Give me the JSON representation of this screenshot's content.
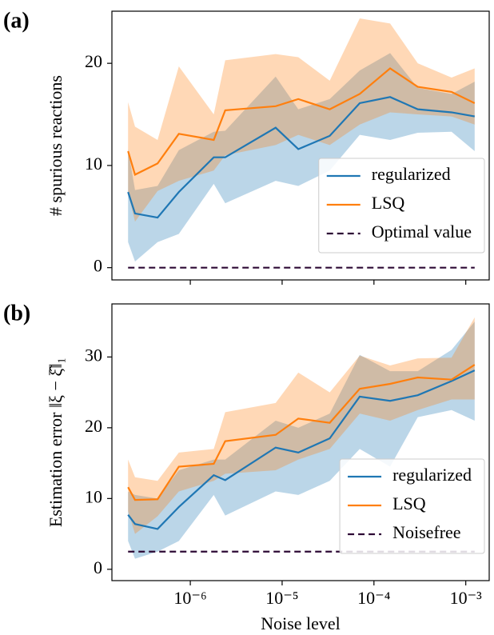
{
  "chart_data": [
    {
      "type": "line",
      "panel_label": "(a)",
      "ylabel": "# spurious reactions",
      "x": [
        2.1e-07,
        2.5e-07,
        4.4e-07,
        7.5e-07,
        1.8e-06,
        2.4e-06,
        8.5e-06,
        1.5e-05,
        3.3e-05,
        7e-05,
        0.00015,
        0.0003,
        0.0007,
        0.00125
      ],
      "xscale": "log",
      "sharex": true,
      "ylim": [
        -1.2,
        25.1
      ],
      "yticks": [
        0,
        10,
        20
      ],
      "legend": "lower right",
      "series": [
        {
          "name": "regularized",
          "color": "#1f77b4",
          "values": [
            7.4,
            5.3,
            4.9,
            7.4,
            10.8,
            10.8,
            13.7,
            11.6,
            12.9,
            16.1,
            16.7,
            15.5,
            15.2,
            14.8
          ],
          "band": {
            "lower": [
              2.5,
              0.6,
              2.5,
              3.3,
              8.2,
              6.3,
              8.5,
              8.0,
              9.5,
              13.0,
              12.5,
              13.2,
              13.3,
              11.4
            ],
            "upper": [
              11.6,
              7.6,
              8.0,
              11.5,
              13.3,
              13.4,
              18.7,
              15.5,
              16.5,
              19.3,
              21.0,
              17.6,
              17.0,
              18.2
            ]
          }
        },
        {
          "name": "LSQ",
          "color": "#ff7f0e",
          "values": [
            11.4,
            9.1,
            10.2,
            13.1,
            12.5,
            15.4,
            15.8,
            16.5,
            15.5,
            17.0,
            19.5,
            17.7,
            17.2,
            16.1
          ],
          "band": {
            "lower": [
              7.3,
              4.5,
              7.5,
              8.5,
              9.5,
              11.0,
              12.0,
              13.0,
              12.0,
              14.0,
              15.2,
              15.0,
              14.8,
              14.0
            ],
            "upper": [
              16.2,
              13.8,
              12.5,
              19.7,
              15.0,
              20.3,
              20.9,
              20.6,
              18.3,
              24.4,
              23.9,
              20.0,
              18.6,
              19.5
            ]
          }
        },
        {
          "name": "Optimal value",
          "color": "#2d0a35",
          "dashed": true,
          "values": [
            0,
            0,
            0,
            0,
            0,
            0,
            0,
            0,
            0,
            0,
            0,
            0,
            0,
            0
          ]
        }
      ]
    },
    {
      "type": "line",
      "panel_label": "(b)",
      "ylabel": "Estimation error ‖ξ − ξ̂‖₁",
      "xlabel": "Noise level",
      "x": [
        2.1e-07,
        2.5e-07,
        4.4e-07,
        7.5e-07,
        1.8e-06,
        2.4e-06,
        8.5e-06,
        1.5e-05,
        3.3e-05,
        7e-05,
        0.00015,
        0.0003,
        0.0007,
        0.00125
      ],
      "xscale": "log",
      "xlim": [
        1.4e-07,
        0.0018
      ],
      "xticks": [
        {
          "value": 1e-06,
          "label": "10⁻⁶"
        },
        {
          "value": 1e-05,
          "label": "10⁻⁵"
        },
        {
          "value": 0.0001,
          "label": "10⁻⁴"
        },
        {
          "value": 0.001,
          "label": "10⁻³"
        }
      ],
      "ylim": [
        -1.6,
        37.5
      ],
      "yticks": [
        0,
        10,
        20,
        30
      ],
      "legend": "lower right",
      "series": [
        {
          "name": "regularized",
          "color": "#1f77b4",
          "values": [
            7.7,
            6.4,
            5.7,
            8.8,
            13.3,
            12.6,
            17.2,
            16.5,
            18.5,
            24.4,
            23.8,
            24.6,
            26.6,
            28.1
          ],
          "band": {
            "lower": [
              4.0,
              1.5,
              2.5,
              4.0,
              10.5,
              7.6,
              11.0,
              10.5,
              12.5,
              17.0,
              14.5,
              21.5,
              22.5,
              21.0
            ],
            "upper": [
              11.0,
              10.5,
              10.0,
              14.0,
              15.5,
              15.5,
              21.0,
              20.0,
              22.0,
              30.3,
              28.0,
              28.0,
              31.0,
              35.0
            ]
          }
        },
        {
          "name": "LSQ",
          "color": "#ff7f0e",
          "values": [
            11.6,
            9.8,
            9.9,
            14.5,
            14.9,
            18.1,
            19.0,
            21.3,
            20.7,
            25.5,
            26.2,
            27.1,
            26.8,
            28.9
          ],
          "band": {
            "lower": [
              8.2,
              5.0,
              7.5,
              11.0,
              12.5,
              13.5,
              14.0,
              15.5,
              17.0,
              22.0,
              21.0,
              22.5,
              24.0,
              24.0
            ],
            "upper": [
              15.5,
              13.0,
              12.5,
              16.5,
              17.0,
              22.2,
              23.5,
              27.8,
              25.0,
              30.2,
              28.8,
              29.8,
              29.9,
              35.6
            ]
          }
        },
        {
          "name": "Noisefree",
          "color": "#2d0a35",
          "dashed": true,
          "values": [
            2.5,
            2.5,
            2.5,
            2.5,
            2.5,
            2.5,
            2.5,
            2.5,
            2.5,
            2.5,
            2.5,
            2.5,
            2.5,
            2.5
          ]
        }
      ]
    }
  ]
}
